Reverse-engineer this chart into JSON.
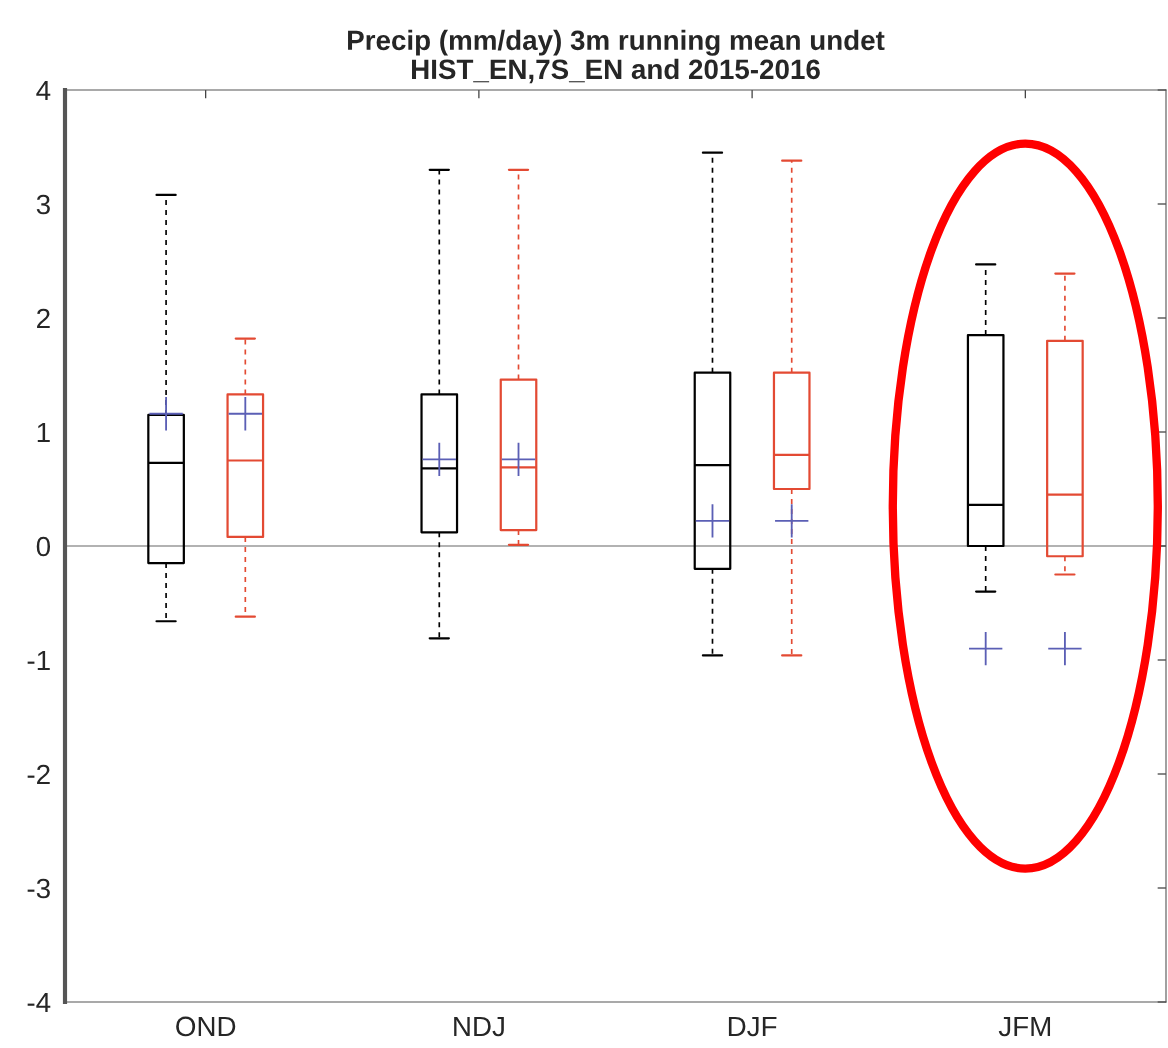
{
  "chart_data": {
    "type": "box",
    "title": "Precip (mm/day) 3m running mean undet\nHIST_EN,7S_EN and 2015-2016",
    "categories": [
      "OND",
      "NDJ",
      "DJF",
      "JFM"
    ],
    "series": [
      {
        "color": "#000000",
        "boxes": [
          {
            "low": -0.66,
            "q1": -0.15,
            "median": 0.73,
            "q3": 1.15,
            "high": 3.08,
            "mean": 1.16
          },
          {
            "low": -0.81,
            "q1": 0.12,
            "median": 0.68,
            "q3": 1.33,
            "high": 3.3,
            "mean": 0.76
          },
          {
            "low": -0.96,
            "q1": -0.2,
            "median": 0.71,
            "q3": 1.52,
            "high": 3.45,
            "mean": 0.22
          },
          {
            "low": -0.4,
            "q1": 0.0,
            "median": 0.36,
            "q3": 1.85,
            "high": 2.47,
            "mean": -0.9
          }
        ]
      },
      {
        "color": "#e34a33",
        "boxes": [
          {
            "low": -0.62,
            "q1": 0.08,
            "median": 0.75,
            "q3": 1.33,
            "high": 1.82,
            "mean": 1.16
          },
          {
            "low": 0.01,
            "q1": 0.14,
            "median": 0.69,
            "q3": 1.46,
            "high": 3.3,
            "mean": 0.76
          },
          {
            "low": -0.96,
            "q1": 0.5,
            "median": 0.8,
            "q3": 1.52,
            "high": 3.38,
            "mean": 0.22
          },
          {
            "low": -0.25,
            "q1": -0.09,
            "median": 0.45,
            "q3": 1.8,
            "high": 2.39,
            "mean": -0.9
          }
        ]
      }
    ],
    "ylim": [
      -4,
      4
    ],
    "yticks": [
      -4,
      -3,
      -2,
      -1,
      0,
      1,
      2,
      3,
      4
    ],
    "ref_lines": [
      {
        "axis": "y",
        "value": 0,
        "color": "#999999"
      }
    ],
    "grid": false,
    "legend": false
  }
}
